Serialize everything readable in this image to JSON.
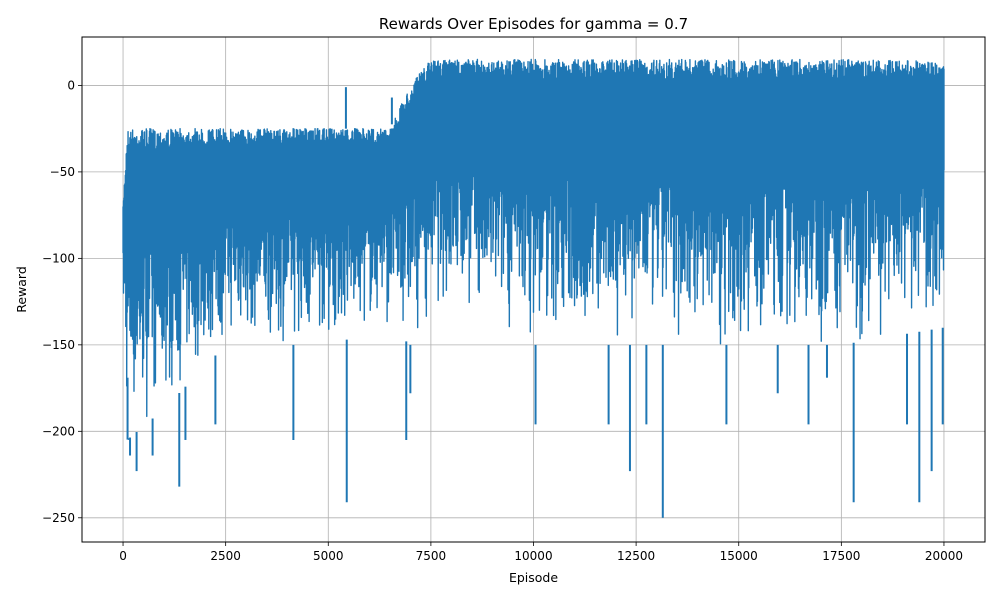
{
  "chart_data": {
    "type": "line",
    "title": "Rewards Over Episodes for gamma = 0.7",
    "xlabel": "Episode",
    "ylabel": "Reward",
    "xlim": [
      -1000,
      21000
    ],
    "ylim": [
      -264,
      28
    ],
    "grid": true,
    "xticks": [
      0,
      2500,
      5000,
      7500,
      10000,
      12500,
      15000,
      17500,
      20000
    ],
    "yticks": [
      0,
      -50,
      -100,
      -150,
      -200,
      -250
    ],
    "series": [
      {
        "color": "#1f77b4",
        "episodes": 20000,
        "envelope": [
          {
            "episode": 0,
            "max": -70,
            "min": -133
          },
          {
            "episode": 100,
            "max": -25,
            "min": -205
          },
          {
            "episode": 1000,
            "max": -25,
            "min": -187
          },
          {
            "episode": 2500,
            "max": -25,
            "min": -150
          },
          {
            "episode": 5000,
            "max": -25,
            "min": -150
          },
          {
            "episode": 6500,
            "max": -25,
            "min": -140
          },
          {
            "episode": 7000,
            "max": 0,
            "min": -150
          },
          {
            "episode": 7500,
            "max": 15,
            "min": -133
          },
          {
            "episode": 8200,
            "max": 15,
            "min": -133
          },
          {
            "episode": 10000,
            "max": 15,
            "min": -150
          },
          {
            "episode": 12500,
            "max": 15,
            "min": -150
          },
          {
            "episode": 15000,
            "max": 15,
            "min": -150
          },
          {
            "episode": 17500,
            "max": 15,
            "min": -150
          },
          {
            "episode": 20000,
            "max": 14,
            "min": -140
          }
        ],
        "spikes": [
          {
            "episode": 110,
            "value": -169
          },
          {
            "episode": 150,
            "value": -205
          },
          {
            "episode": 170,
            "value": -214
          },
          {
            "episode": 330,
            "value": -223
          },
          {
            "episode": 720,
            "value": -214
          },
          {
            "episode": 1370,
            "value": -232
          },
          {
            "episode": 1520,
            "value": -205
          },
          {
            "episode": 2250,
            "value": -196
          },
          {
            "episode": 4150,
            "value": -205
          },
          {
            "episode": 5430,
            "value": -1
          },
          {
            "episode": 5450,
            "value": -241
          },
          {
            "episode": 6550,
            "value": -7
          },
          {
            "episode": 6900,
            "value": -205
          },
          {
            "episode": 7000,
            "value": -178
          },
          {
            "episode": 10050,
            "value": -196
          },
          {
            "episode": 11830,
            "value": -196
          },
          {
            "episode": 12350,
            "value": -223
          },
          {
            "episode": 12750,
            "value": -196
          },
          {
            "episode": 13150,
            "value": -250
          },
          {
            "episode": 14700,
            "value": -196
          },
          {
            "episode": 15950,
            "value": -178
          },
          {
            "episode": 16700,
            "value": -196
          },
          {
            "episode": 17150,
            "value": -169
          },
          {
            "episode": 17800,
            "value": -241
          },
          {
            "episode": 19100,
            "value": -196
          },
          {
            "episode": 19400,
            "value": -241
          },
          {
            "episode": 19700,
            "value": -223
          },
          {
            "episode": 19970,
            "value": -196
          }
        ]
      }
    ]
  }
}
